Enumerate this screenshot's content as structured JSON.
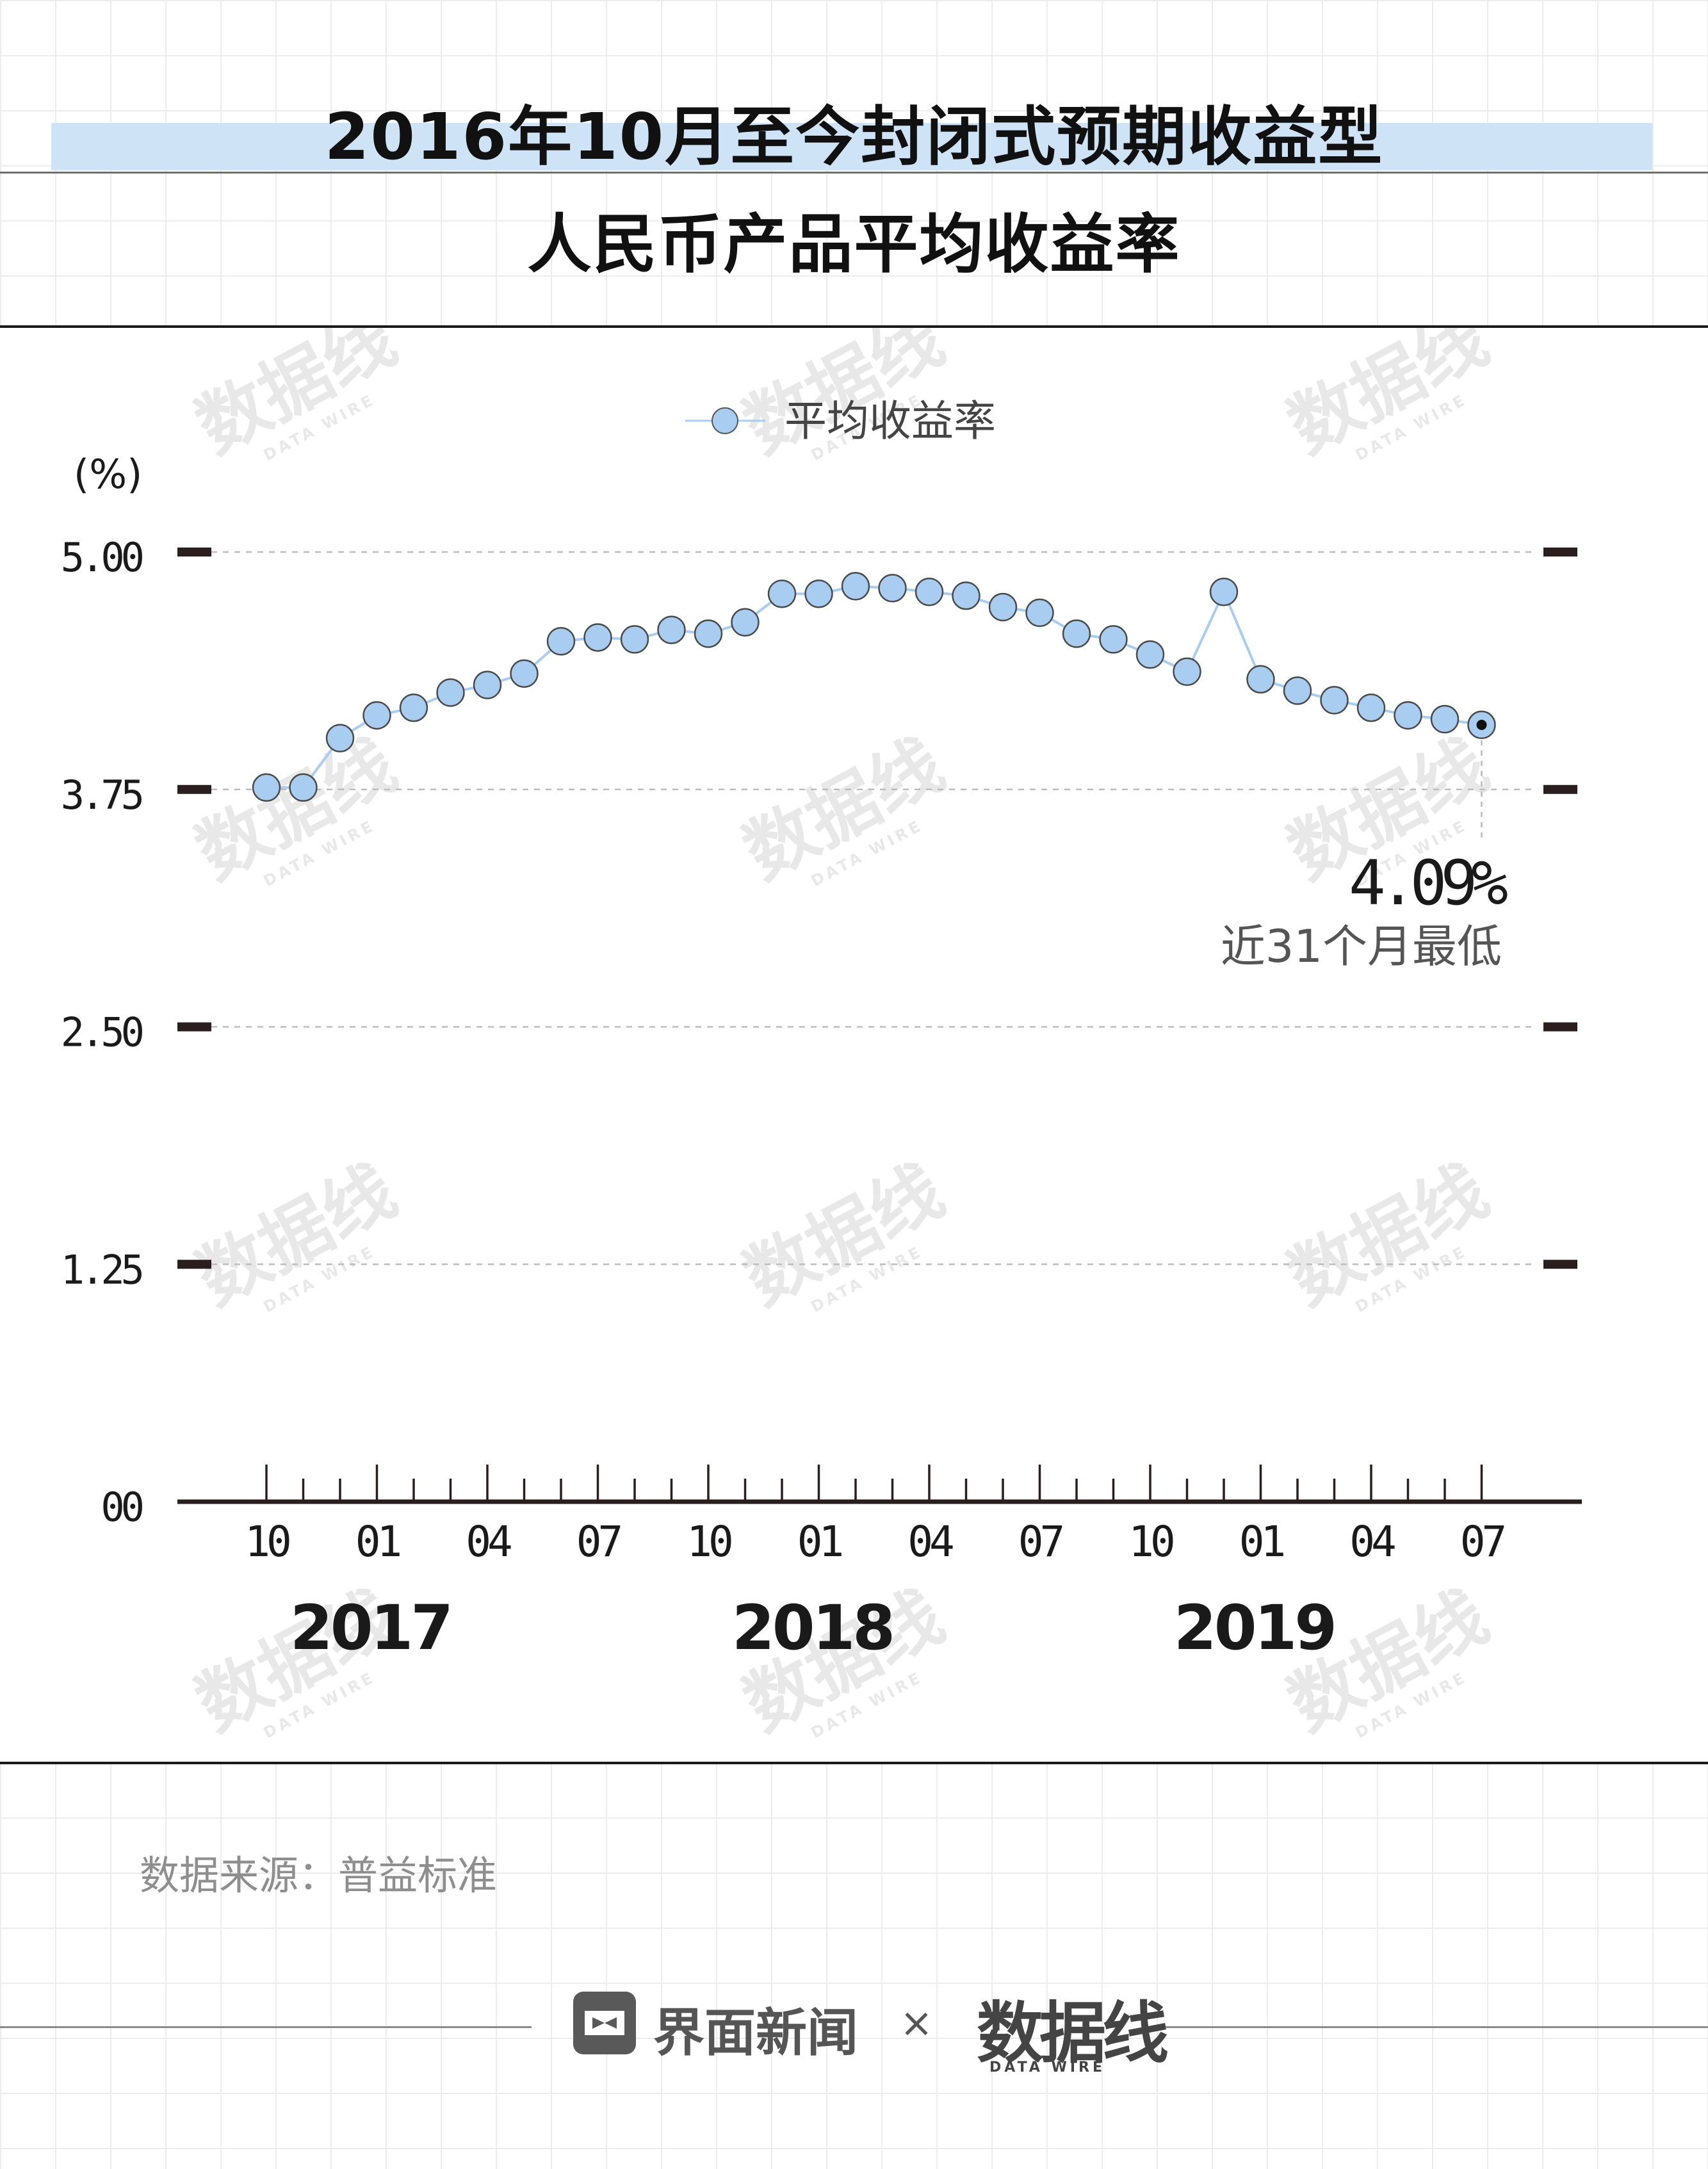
{
  "title": {
    "line1": "2016年10月至今封闭式预期收益型",
    "line2": "人民币产品平均收益率"
  },
  "chart_data": {
    "type": "line",
    "unit_label": "(%)",
    "ylim": [
      0,
      5
    ],
    "yticks": [
      0,
      1.25,
      2.5,
      3.75,
      5
    ],
    "ytick_labels": [
      "00",
      "1.25",
      "2.50",
      "3.75",
      "5.00"
    ],
    "grid": true,
    "legend_position": "top-center",
    "x": [
      "2016-10",
      "2016-11",
      "2016-12",
      "2017-01",
      "2017-02",
      "2017-03",
      "2017-04",
      "2017-05",
      "2017-06",
      "2017-07",
      "2017-08",
      "2017-09",
      "2017-10",
      "2017-11",
      "2017-12",
      "2018-01",
      "2018-02",
      "2018-03",
      "2018-04",
      "2018-05",
      "2018-06",
      "2018-07",
      "2018-08",
      "2018-09",
      "2018-10",
      "2018-11",
      "2018-12",
      "2019-01",
      "2019-02",
      "2019-03",
      "2019-04",
      "2019-05",
      "2019-06",
      "2019-07"
    ],
    "xtick_labels": [
      "10",
      "01",
      "04",
      "07",
      "10",
      "01",
      "04",
      "07",
      "10",
      "01",
      "04",
      "07"
    ],
    "year_labels": [
      "2017",
      "2018",
      "2019"
    ],
    "series": [
      {
        "name": "平均收益率",
        "color": "#a9cdf0",
        "values": [
          3.76,
          3.76,
          4.02,
          4.14,
          4.18,
          4.26,
          4.3,
          4.36,
          4.53,
          4.55,
          4.54,
          4.59,
          4.57,
          4.63,
          4.78,
          4.78,
          4.82,
          4.81,
          4.79,
          4.77,
          4.71,
          4.68,
          4.57,
          4.54,
          4.46,
          4.37,
          4.79,
          4.33,
          4.27,
          4.22,
          4.18,
          4.14,
          4.12,
          4.09
        ]
      }
    ],
    "annotation": {
      "value": "4.09%",
      "text": "近31个月最低"
    }
  },
  "watermark": {
    "brand": "数据线",
    "sub": "DATA WIRE"
  },
  "source": "数据来源：普益标准",
  "footer": {
    "brand": "界面新闻",
    "times": "×",
    "partner": "数据线",
    "partner_sub": "DATA WIRE"
  }
}
